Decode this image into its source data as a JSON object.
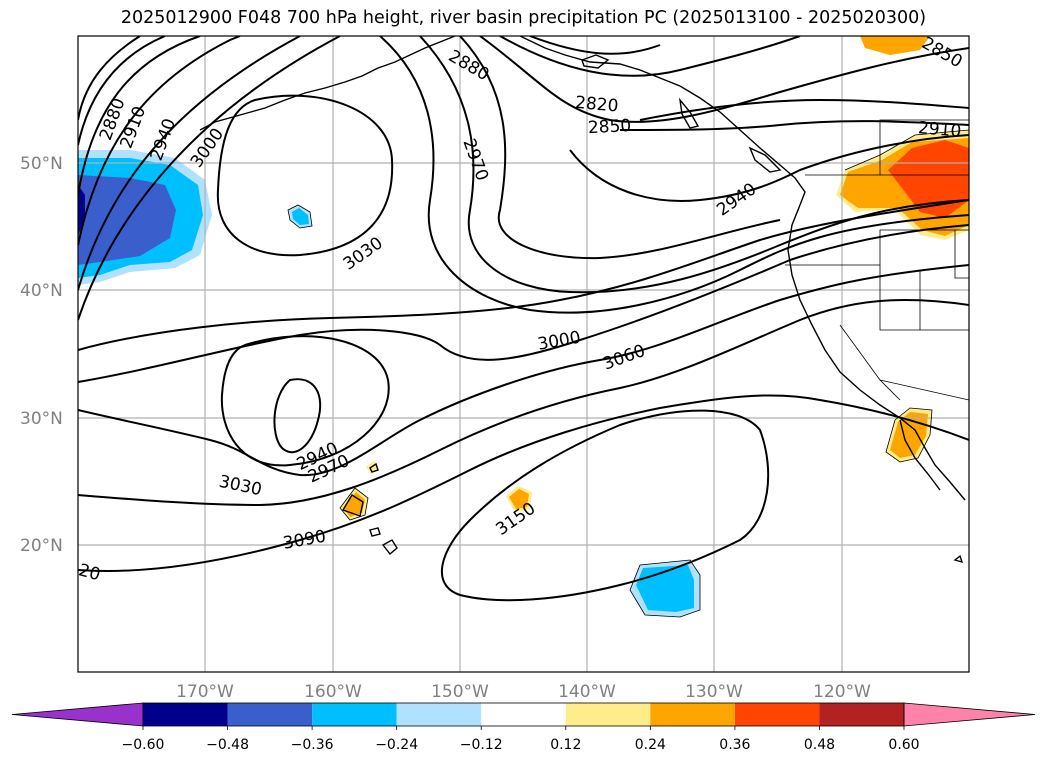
{
  "title": "2025012900 F048 700 hPa height, river basin precipitation PC (2025013100 - 2025020300)",
  "lat_labels": [
    "50°N",
    "40°N",
    "30°N",
    "20°N"
  ],
  "lon_labels": [
    "170°W",
    "160°W",
    "150°W",
    "140°W",
    "130°W",
    "120°W"
  ],
  "contour_labels": [
    "2880",
    "2910",
    "2940",
    "3000",
    "2880",
    "2820",
    "2850",
    "2970",
    "2940",
    "2910",
    "2850",
    "3030",
    "3000",
    "3060",
    "2940",
    "2970",
    "3030",
    "3090",
    "3150",
    "20"
  ],
  "colorbar": {
    "ticks": [
      "−0.60",
      "−0.48",
      "−0.36",
      "−0.24",
      "−0.12",
      "0.12",
      "0.24",
      "0.36",
      "0.48",
      "0.60"
    ],
    "colors": [
      "#9932cc",
      "#00008b",
      "#3a5fcd",
      "#00bfff",
      "#b0e2ff",
      "#ffffff",
      "#ffec8b",
      "#ffa500",
      "#ff4500",
      "#b22222",
      "#ff82ab"
    ]
  }
}
